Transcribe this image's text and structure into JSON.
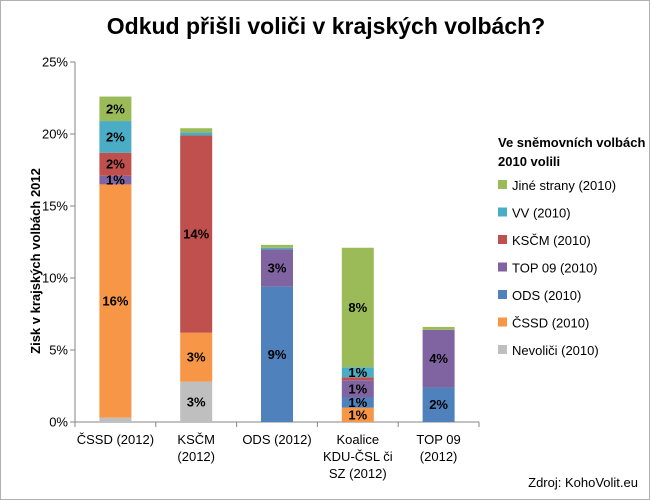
{
  "chart_data": {
    "type": "bar",
    "stacked": true,
    "title": "Odkud přišli voliči v krajských volbách?",
    "ylabel": "Zisk v krajských volbách 2012",
    "xlabel": "",
    "ylim": [
      0,
      25
    ],
    "yticks": [
      "0%",
      "5%",
      "10%",
      "15%",
      "20%",
      "25%"
    ],
    "grid": false,
    "legend_position": "right",
    "legend_title": "Ve sněmovních volbách 2010 volili",
    "categories": [
      "ČSSD (2012)",
      "KSČM (2012)",
      "ODS (2012)",
      "Koalice KDU-ČSL či SZ (2012)",
      "TOP 09 (2012)"
    ],
    "series": [
      {
        "name": "Nevoliči (2010)",
        "color": "#bfbfbf",
        "values": [
          0.3,
          2.8,
          0,
          0,
          0
        ],
        "labels": [
          "",
          "3%",
          "",
          "",
          ""
        ]
      },
      {
        "name": "ČSSD (2010)",
        "color": "#f79646",
        "values": [
          16.2,
          3.4,
          0,
          1.0,
          0
        ],
        "labels": [
          "16%",
          "3%",
          "",
          "1%",
          ""
        ]
      },
      {
        "name": "ODS (2010)",
        "color": "#4f81bd",
        "values": [
          0,
          0,
          9.4,
          0.7,
          2.4
        ],
        "labels": [
          "",
          "",
          "9%",
          "1%",
          "2%"
        ]
      },
      {
        "name": "TOP 09 (2010)",
        "color": "#8064a2",
        "values": [
          0.6,
          0,
          2.6,
          1.2,
          4.0
        ],
        "labels": [
          "1%",
          "",
          "3%",
          "1%",
          "4%"
        ]
      },
      {
        "name": "KSČM (2010)",
        "color": "#c0504d",
        "values": [
          1.6,
          13.7,
          0,
          0.2,
          0
        ],
        "labels": [
          "2%",
          "14%",
          "",
          "",
          ""
        ]
      },
      {
        "name": "VV (2010)",
        "color": "#4bacc6",
        "values": [
          2.2,
          0.2,
          0.1,
          0.7,
          0
        ],
        "labels": [
          "2%",
          "",
          "",
          "1%",
          ""
        ]
      },
      {
        "name": "Jiné strany (2010)",
        "color": "#9bbb59",
        "values": [
          1.7,
          0.3,
          0.2,
          8.3,
          0.2
        ],
        "labels": [
          "2%",
          "",
          "",
          "8%",
          ""
        ]
      }
    ],
    "source": "Zdroj: KohoVolit.eu"
  }
}
